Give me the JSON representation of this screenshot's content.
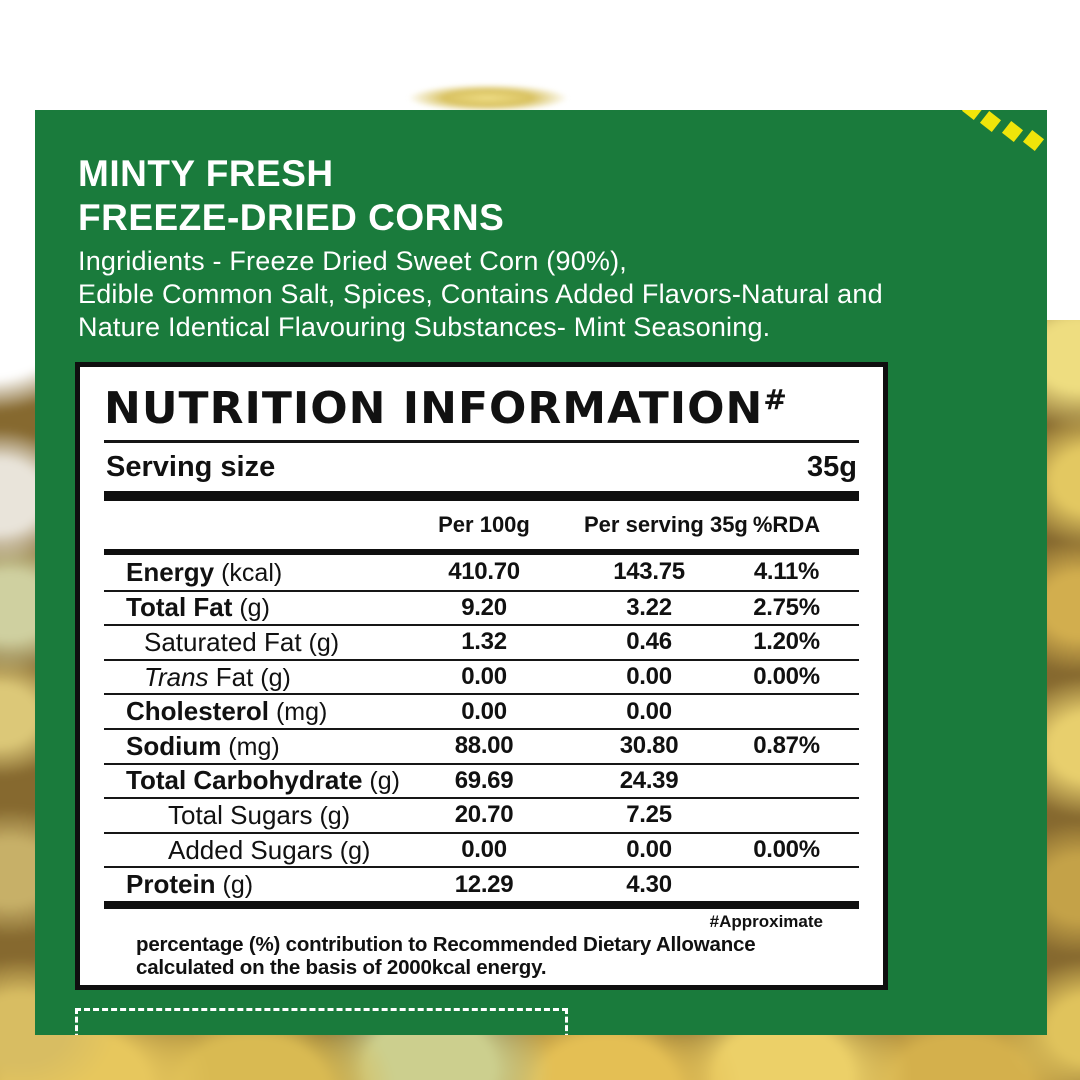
{
  "colors": {
    "panel_green": "#1a7b3c",
    "accent_yellow": "#f0e50a",
    "ink": "#111111",
    "white": "#ffffff"
  },
  "header": {
    "title_line1": "MINTY FRESH",
    "title_line2": "FREEZE-DRIED CORNS",
    "ingredients_line1": "Ingridients - Freeze Dried Sweet Corn (90%),",
    "ingredients_line2": "Edible Common Salt, Spices, Contains Added Flavors-Natural and",
    "ingredients_line3": "Nature Identical Flavouring Substances- Mint Seasoning."
  },
  "nutrition": {
    "title": "NUTRITION INFORMATION",
    "title_mark": "#",
    "serving_label": "Serving size",
    "serving_value": "35g",
    "columns": [
      "Per 100g",
      "Per serving 35g",
      "%RDA"
    ],
    "rows": [
      {
        "label": "Energy",
        "unit": "(kcal)",
        "bold": true,
        "indent": 0,
        "italic_first": false,
        "per100": "410.70",
        "per_serving": "143.75",
        "rda": "4.11%"
      },
      {
        "label": "Total Fat",
        "unit": "(g)",
        "bold": true,
        "indent": 0,
        "italic_first": false,
        "per100": "9.20",
        "per_serving": "3.22",
        "rda": "2.75%"
      },
      {
        "label": "Saturated Fat",
        "unit": "(g)",
        "bold": false,
        "indent": 1,
        "italic_first": false,
        "per100": "1.32",
        "per_serving": "0.46",
        "rda": "1.20%"
      },
      {
        "label": "Trans Fat",
        "unit": "(g)",
        "bold": false,
        "indent": 1,
        "italic_first": true,
        "per100": "0.00",
        "per_serving": "0.00",
        "rda": "0.00%"
      },
      {
        "label": "Cholesterol",
        "unit": "(mg)",
        "bold": true,
        "indent": 0,
        "italic_first": false,
        "per100": "0.00",
        "per_serving": "0.00",
        "rda": ""
      },
      {
        "label": "Sodium",
        "unit": "(mg)",
        "bold": true,
        "indent": 0,
        "italic_first": false,
        "per100": "88.00",
        "per_serving": "30.80",
        "rda": "0.87%"
      },
      {
        "label": "Total Carbohydrate",
        "unit": "(g)",
        "bold": true,
        "indent": 0,
        "italic_first": false,
        "per100": "69.69",
        "per_serving": "24.39",
        "rda": ""
      },
      {
        "label": "Total Sugars",
        "unit": "(g)",
        "bold": false,
        "indent": 2,
        "italic_first": false,
        "per100": "20.70",
        "per_serving": "7.25",
        "rda": ""
      },
      {
        "label": "Added Sugars",
        "unit": "(g)",
        "bold": false,
        "indent": 2,
        "italic_first": false,
        "per100": "0.00",
        "per_serving": "0.00",
        "rda": "0.00%"
      },
      {
        "label": "Protein",
        "unit": "(g)",
        "bold": true,
        "indent": 0,
        "italic_first": false,
        "per100": "12.29",
        "per_serving": "4.30",
        "rda": ""
      }
    ],
    "footnote_mark": "#Approximate",
    "footer_line1": "percentage (%) contribution to Recommended Dietary Allowance",
    "footer_line2": "calculated on the basis of 2000kcal energy."
  }
}
